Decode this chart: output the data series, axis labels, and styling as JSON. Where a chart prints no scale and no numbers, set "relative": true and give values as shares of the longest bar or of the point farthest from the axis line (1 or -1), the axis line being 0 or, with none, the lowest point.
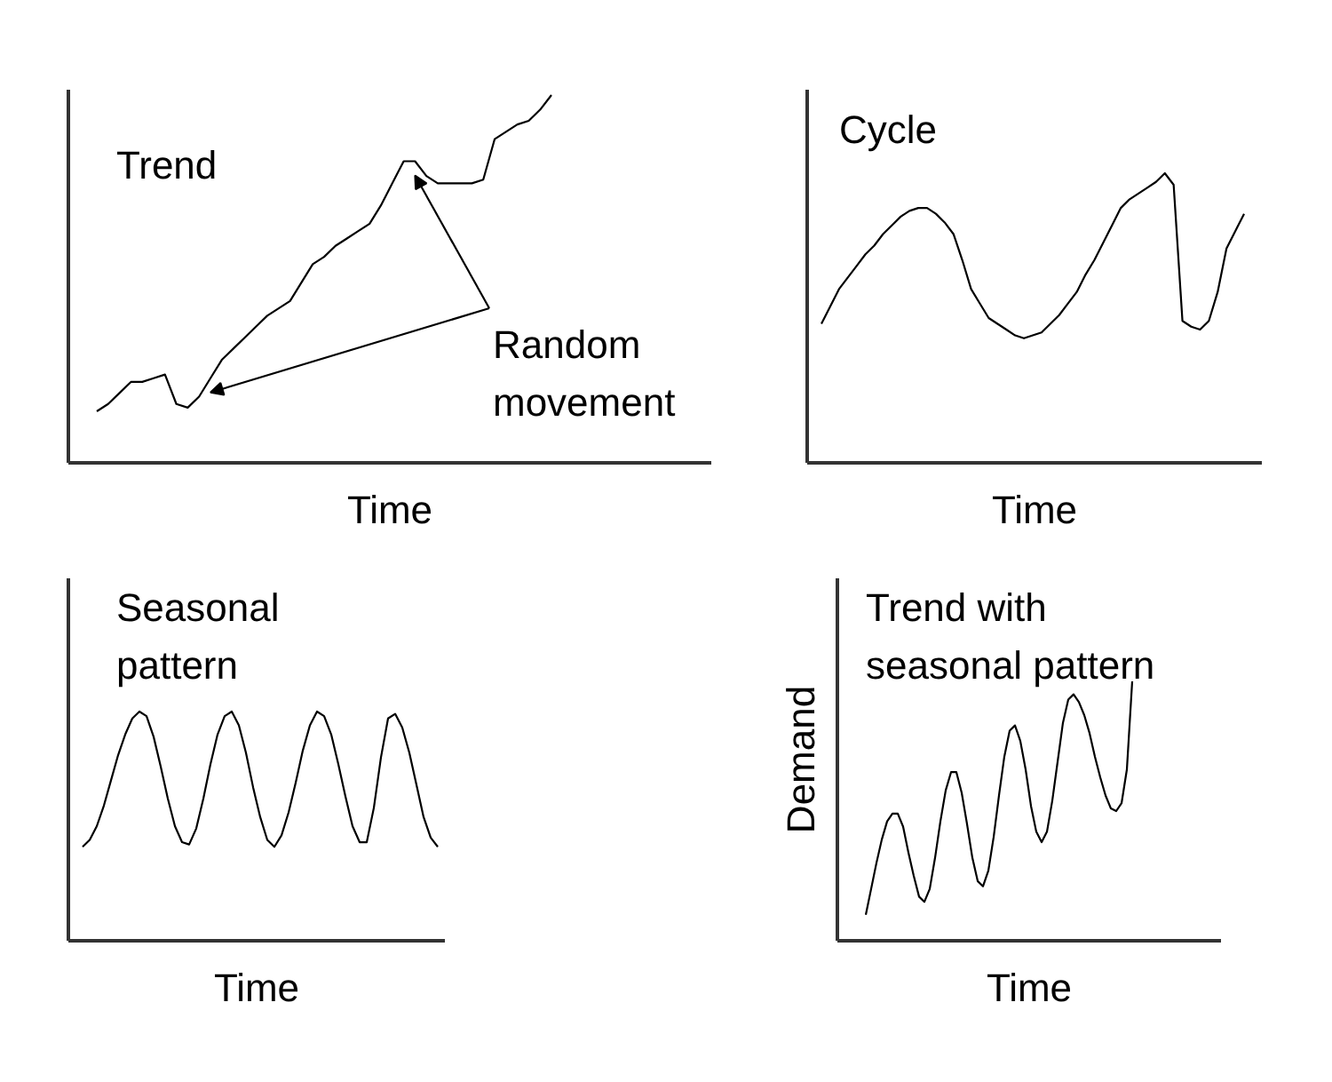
{
  "chart_data": [
    {
      "type": "line",
      "title": "Trend",
      "xlabel": "Time",
      "relative": true,
      "annotations": [
        "Random movement"
      ],
      "categories": [
        null,
        null,
        null,
        null,
        null,
        null,
        null,
        null,
        null,
        null,
        null,
        null,
        null,
        null,
        null,
        null,
        null,
        null,
        null,
        null,
        null,
        null,
        null,
        null,
        null,
        null,
        null,
        null,
        null,
        null,
        null,
        null,
        null,
        null,
        null,
        null,
        null,
        null,
        null,
        null,
        null
      ],
      "series": [
        {
          "color": "#000000",
          "values": [
            0.14,
            0.16,
            0.19,
            0.22,
            0.22,
            0.23,
            0.24,
            0.16,
            0.15,
            0.18,
            0.23,
            0.28,
            0.31,
            0.34,
            0.37,
            0.4,
            0.42,
            0.44,
            0.49,
            0.54,
            0.56,
            0.59,
            0.61,
            0.63,
            0.65,
            0.7,
            0.76,
            0.82,
            0.82,
            0.78,
            0.76,
            0.76,
            0.76,
            0.76,
            0.77,
            0.88,
            0.9,
            0.92,
            0.93,
            0.96,
            1
          ]
        }
      ]
    },
    {
      "type": "line",
      "title": "Cycle",
      "xlabel": "Time",
      "relative": true,
      "categories": [
        null,
        null,
        null,
        null,
        null,
        null,
        null,
        null,
        null,
        null,
        null,
        null,
        null,
        null,
        null,
        null,
        null,
        null,
        null,
        null,
        null,
        null,
        null,
        null,
        null,
        null,
        null,
        null,
        null,
        null,
        null,
        null,
        null,
        null,
        null,
        null,
        null,
        null,
        null,
        null,
        null,
        null,
        null,
        null,
        null,
        null,
        null,
        null,
        null
      ],
      "series": [
        {
          "color": "#000000",
          "values": [
            0.48,
            0.54,
            0.6,
            0.64,
            0.68,
            0.72,
            0.75,
            0.79,
            0.82,
            0.85,
            0.87,
            0.88,
            0.88,
            0.86,
            0.83,
            0.79,
            0.7,
            0.6,
            0.55,
            0.5,
            0.48,
            0.46,
            0.44,
            0.43,
            0.44,
            0.45,
            0.48,
            0.51,
            0.55,
            0.59,
            0.65,
            0.7,
            0.76,
            0.82,
            0.88,
            0.91,
            0.93,
            0.95,
            0.97,
            1,
            0.96,
            0.49,
            0.47,
            0.46,
            0.49,
            0.59,
            0.74,
            0.8,
            0.86
          ]
        }
      ]
    },
    {
      "type": "line",
      "title": "Seasonal pattern",
      "xlabel": "Time",
      "relative": true,
      "categories": [
        null,
        null,
        null,
        null,
        null,
        null,
        null,
        null,
        null,
        null,
        null,
        null,
        null,
        null,
        null,
        null,
        null,
        null,
        null,
        null,
        null,
        null,
        null,
        null,
        null,
        null,
        null,
        null,
        null,
        null,
        null,
        null,
        null,
        null,
        null,
        null,
        null,
        null,
        null,
        null,
        null,
        null,
        null,
        null,
        null,
        null,
        null,
        null,
        null,
        null,
        null
      ],
      "series": [
        {
          "color": "#000000",
          "values": [
            0.41,
            0.44,
            0.5,
            0.59,
            0.7,
            0.81,
            0.9,
            0.97,
            1,
            0.98,
            0.89,
            0.76,
            0.62,
            0.5,
            0.43,
            0.42,
            0.49,
            0.62,
            0.77,
            0.9,
            0.98,
            1,
            0.94,
            0.82,
            0.67,
            0.54,
            0.44,
            0.41,
            0.46,
            0.56,
            0.69,
            0.83,
            0.94,
            1,
            0.98,
            0.9,
            0.77,
            0.63,
            0.5,
            0.43,
            0.43,
            0.58,
            0.8,
            0.97,
            0.99,
            0.93,
            0.82,
            0.68,
            0.54,
            0.45,
            0.41
          ]
        }
      ]
    },
    {
      "type": "line",
      "title": "Trend with seasonal pattern",
      "xlabel": "Time",
      "ylabel": "Demand",
      "relative": true,
      "categories": [
        null,
        null,
        null,
        null,
        null,
        null,
        null,
        null,
        null,
        null,
        null,
        null,
        null,
        null,
        null,
        null,
        null,
        null,
        null,
        null,
        null,
        null,
        null,
        null,
        null,
        null,
        null,
        null,
        null,
        null,
        null,
        null,
        null,
        null,
        null,
        null,
        null,
        null,
        null,
        null,
        null,
        null,
        null,
        null,
        null,
        null,
        null,
        null,
        null,
        null,
        null
      ],
      "series": [
        {
          "color": "#000000",
          "values": [
            0.1,
            0.2,
            0.3,
            0.39,
            0.46,
            0.49,
            0.49,
            0.44,
            0.34,
            0.25,
            0.17,
            0.15,
            0.2,
            0.32,
            0.46,
            0.58,
            0.65,
            0.65,
            0.57,
            0.45,
            0.32,
            0.23,
            0.21,
            0.27,
            0.4,
            0.56,
            0.71,
            0.81,
            0.83,
            0.77,
            0.66,
            0.52,
            0.42,
            0.38,
            0.42,
            0.54,
            0.69,
            0.84,
            0.93,
            0.95,
            0.92,
            0.87,
            0.8,
            0.71,
            0.63,
            0.56,
            0.51,
            0.5,
            0.53,
            0.66,
            1
          ]
        }
      ]
    }
  ]
}
